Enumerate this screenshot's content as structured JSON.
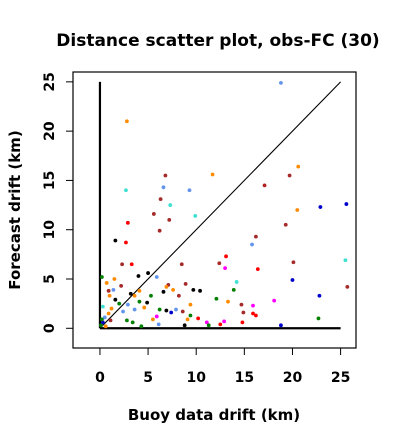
{
  "chart_data": {
    "type": "scatter",
    "title": "Distance scatter plot, obs-FC (30)",
    "xlabel": "Buoy data drift (km)",
    "ylabel": "Forecast drift (km)",
    "xlim": [
      -2.8,
      26.6
    ],
    "ylim": [
      -2.0,
      26.0
    ],
    "x_ticks": [
      0,
      5,
      10,
      15,
      20,
      25
    ],
    "y_ticks": [
      0,
      5,
      10,
      15,
      20,
      25
    ],
    "grid": false,
    "legend": "none",
    "reference_line": {
      "from": [
        0,
        0
      ],
      "to": [
        25,
        25
      ]
    },
    "axis_lines": [
      {
        "from": [
          0,
          0
        ],
        "to": [
          0,
          25
        ]
      },
      {
        "from": [
          0,
          0
        ],
        "to": [
          25,
          0
        ]
      }
    ],
    "points": [
      {
        "x": 2.8,
        "y": 21.0,
        "color": "#ff8c00"
      },
      {
        "x": 18.8,
        "y": 24.9,
        "color": "#6495ed"
      },
      {
        "x": 20.6,
        "y": 16.4,
        "color": "#ff8c00"
      },
      {
        "x": 19.7,
        "y": 15.5,
        "color": "#a52a2a"
      },
      {
        "x": 17.1,
        "y": 14.5,
        "color": "#b22222"
      },
      {
        "x": 11.7,
        "y": 15.6,
        "color": "#ff8c00"
      },
      {
        "x": 9.3,
        "y": 14.0,
        "color": "#6495ed"
      },
      {
        "x": 6.6,
        "y": 14.3,
        "color": "#6495ed"
      },
      {
        "x": 6.8,
        "y": 15.5,
        "color": "#a52a2a"
      },
      {
        "x": 2.7,
        "y": 14.0,
        "color": "#40e0d0"
      },
      {
        "x": 6.3,
        "y": 13.1,
        "color": "#a52a2a"
      },
      {
        "x": 7.3,
        "y": 12.5,
        "color": "#40e0d0"
      },
      {
        "x": 5.6,
        "y": 11.6,
        "color": "#a52a2a"
      },
      {
        "x": 7.2,
        "y": 11.0,
        "color": "#a52a2a"
      },
      {
        "x": 2.9,
        "y": 10.7,
        "color": "#ff0000"
      },
      {
        "x": 9.9,
        "y": 11.4,
        "color": "#40e0d0"
      },
      {
        "x": 20.5,
        "y": 12.0,
        "color": "#ff8c00"
      },
      {
        "x": 22.9,
        "y": 12.3,
        "color": "#0000cd"
      },
      {
        "x": 25.6,
        "y": 12.6,
        "color": "#0000cd"
      },
      {
        "x": 19.3,
        "y": 10.5,
        "color": "#a52a2a"
      },
      {
        "x": 6.2,
        "y": 9.9,
        "color": "#a52a2a"
      },
      {
        "x": 1.6,
        "y": 8.9,
        "color": "#000000"
      },
      {
        "x": 2.7,
        "y": 8.7,
        "color": "#ff0000"
      },
      {
        "x": 16.2,
        "y": 9.3,
        "color": "#a52a2a"
      },
      {
        "x": 15.8,
        "y": 8.5,
        "color": "#6495ed"
      },
      {
        "x": 25.5,
        "y": 6.9,
        "color": "#40e0d0"
      },
      {
        "x": 20.1,
        "y": 6.7,
        "color": "#a52a2a"
      },
      {
        "x": 13.1,
        "y": 7.3,
        "color": "#ff0000"
      },
      {
        "x": 12.4,
        "y": 6.6,
        "color": "#a52a2a"
      },
      {
        "x": 13.0,
        "y": 6.1,
        "color": "#ff00ff"
      },
      {
        "x": 16.4,
        "y": 6.0,
        "color": "#ff0000"
      },
      {
        "x": 8.5,
        "y": 6.5,
        "color": "#a52a2a"
      },
      {
        "x": 5.0,
        "y": 5.6,
        "color": "#000000"
      },
      {
        "x": 5.9,
        "y": 5.2,
        "color": "#6495ed"
      },
      {
        "x": 2.3,
        "y": 6.5,
        "color": "#a52a2a"
      },
      {
        "x": 3.3,
        "y": 6.5,
        "color": "#ff0000"
      },
      {
        "x": 4.0,
        "y": 5.3,
        "color": "#000000"
      },
      {
        "x": 1.5,
        "y": 5.0,
        "color": "#ff8c00"
      },
      {
        "x": 0.7,
        "y": 4.6,
        "color": "#ff8c00"
      },
      {
        "x": 0.9,
        "y": 3.8,
        "color": "#a52a2a"
      },
      {
        "x": 1.4,
        "y": 3.9,
        "color": "#6495ed"
      },
      {
        "x": 2.2,
        "y": 4.3,
        "color": "#a52a2a"
      },
      {
        "x": 3.2,
        "y": 3.5,
        "color": "#000000"
      },
      {
        "x": 4.1,
        "y": 3.8,
        "color": "#ff8c00"
      },
      {
        "x": 5.3,
        "y": 3.3,
        "color": "#008000"
      },
      {
        "x": 6.6,
        "y": 3.7,
        "color": "#000000"
      },
      {
        "x": 7.1,
        "y": 4.4,
        "color": "#a52a2a"
      },
      {
        "x": 7.6,
        "y": 3.9,
        "color": "#ff8c00"
      },
      {
        "x": 8.2,
        "y": 3.3,
        "color": "#a52a2a"
      },
      {
        "x": 8.9,
        "y": 4.5,
        "color": "#a52a2a"
      },
      {
        "x": 9.7,
        "y": 3.9,
        "color": "#000000"
      },
      {
        "x": 10.4,
        "y": 3.8,
        "color": "#000000"
      },
      {
        "x": 12.1,
        "y": 3.0,
        "color": "#008000"
      },
      {
        "x": 13.3,
        "y": 2.7,
        "color": "#ff8c00"
      },
      {
        "x": 13.9,
        "y": 3.9,
        "color": "#008000"
      },
      {
        "x": 14.2,
        "y": 4.7,
        "color": "#40e0d0"
      },
      {
        "x": 14.7,
        "y": 2.4,
        "color": "#a52a2a"
      },
      {
        "x": 14.9,
        "y": 1.6,
        "color": "#a52a2a"
      },
      {
        "x": 15.9,
        "y": 1.5,
        "color": "#ff0000"
      },
      {
        "x": 16.2,
        "y": 1.3,
        "color": "#ff0000"
      },
      {
        "x": 15.9,
        "y": 2.3,
        "color": "#ff00ff"
      },
      {
        "x": 18.1,
        "y": 2.8,
        "color": "#ff00ff"
      },
      {
        "x": 20.0,
        "y": 4.9,
        "color": "#0000cd"
      },
      {
        "x": 22.8,
        "y": 3.3,
        "color": "#0000cd"
      },
      {
        "x": 25.7,
        "y": 4.2,
        "color": "#a52a2a"
      },
      {
        "x": 22.7,
        "y": 1.0,
        "color": "#008000"
      },
      {
        "x": 18.8,
        "y": 0.3,
        "color": "#0000cd"
      },
      {
        "x": 14.8,
        "y": 0.6,
        "color": "#ff0000"
      },
      {
        "x": 12.9,
        "y": 0.7,
        "color": "#ff00ff"
      },
      {
        "x": 11.1,
        "y": 0.6,
        "color": "#ff00ff"
      },
      {
        "x": 10.2,
        "y": 1.0,
        "color": "#ff0000"
      },
      {
        "x": 9.4,
        "y": 1.3,
        "color": "#008000"
      },
      {
        "x": 8.6,
        "y": 1.7,
        "color": "#a52a2a"
      },
      {
        "x": 7.9,
        "y": 1.9,
        "color": "#6495ed"
      },
      {
        "x": 7.4,
        "y": 1.6,
        "color": "#0000cd"
      },
      {
        "x": 6.9,
        "y": 1.8,
        "color": "#000000"
      },
      {
        "x": 6.2,
        "y": 1.9,
        "color": "#008000"
      },
      {
        "x": 5.9,
        "y": 1.2,
        "color": "#ff00ff"
      },
      {
        "x": 5.5,
        "y": 0.9,
        "color": "#ff8c00"
      },
      {
        "x": 4.9,
        "y": 2.6,
        "color": "#000000"
      },
      {
        "x": 4.6,
        "y": 2.1,
        "color": "#ff8c00"
      },
      {
        "x": 4.1,
        "y": 2.7,
        "color": "#008000"
      },
      {
        "x": 3.6,
        "y": 1.9,
        "color": "#6495ed"
      },
      {
        "x": 2.9,
        "y": 2.4,
        "color": "#6495ed"
      },
      {
        "x": 2.4,
        "y": 1.7,
        "color": "#6495ed"
      },
      {
        "x": 2.0,
        "y": 2.5,
        "color": "#008000"
      },
      {
        "x": 1.6,
        "y": 2.9,
        "color": "#000000"
      },
      {
        "x": 1.2,
        "y": 2.0,
        "color": "#ff8c00"
      },
      {
        "x": 0.9,
        "y": 1.5,
        "color": "#ff8c00"
      },
      {
        "x": 0.5,
        "y": 1.1,
        "color": "#6495ed"
      },
      {
        "x": 0.3,
        "y": 0.6,
        "color": "#0000cd"
      },
      {
        "x": 0.1,
        "y": 0.3,
        "color": "#008000"
      },
      {
        "x": 0.2,
        "y": 0.9,
        "color": "#008000"
      },
      {
        "x": 0.6,
        "y": 0.2,
        "color": "#ff8c00"
      },
      {
        "x": 1.1,
        "y": 0.8,
        "color": "#a52a2a"
      },
      {
        "x": 2.8,
        "y": 0.8,
        "color": "#008000"
      },
      {
        "x": 3.4,
        "y": 0.6,
        "color": "#008000"
      },
      {
        "x": 4.3,
        "y": 0.2,
        "color": "#008000"
      },
      {
        "x": 6.1,
        "y": 0.4,
        "color": "#6495ed"
      },
      {
        "x": 8.8,
        "y": 0.3,
        "color": "#000000"
      },
      {
        "x": 9.4,
        "y": 2.4,
        "color": "#ff8c00"
      },
      {
        "x": 11.3,
        "y": 0.3,
        "color": "#008000"
      },
      {
        "x": 12.5,
        "y": 0.4,
        "color": "#ff0000"
      },
      {
        "x": 1.0,
        "y": 3.3,
        "color": "#ff8c00"
      },
      {
        "x": 0.3,
        "y": 2.2,
        "color": "#40e0d0"
      },
      {
        "x": 0.2,
        "y": 5.2,
        "color": "#008000"
      },
      {
        "x": 3.6,
        "y": 3.3,
        "color": "#ff8c00"
      },
      {
        "x": 6.9,
        "y": 4.2,
        "color": "#ff8c00"
      },
      {
        "x": 9.1,
        "y": 0.9,
        "color": "#ff8c00"
      }
    ]
  }
}
